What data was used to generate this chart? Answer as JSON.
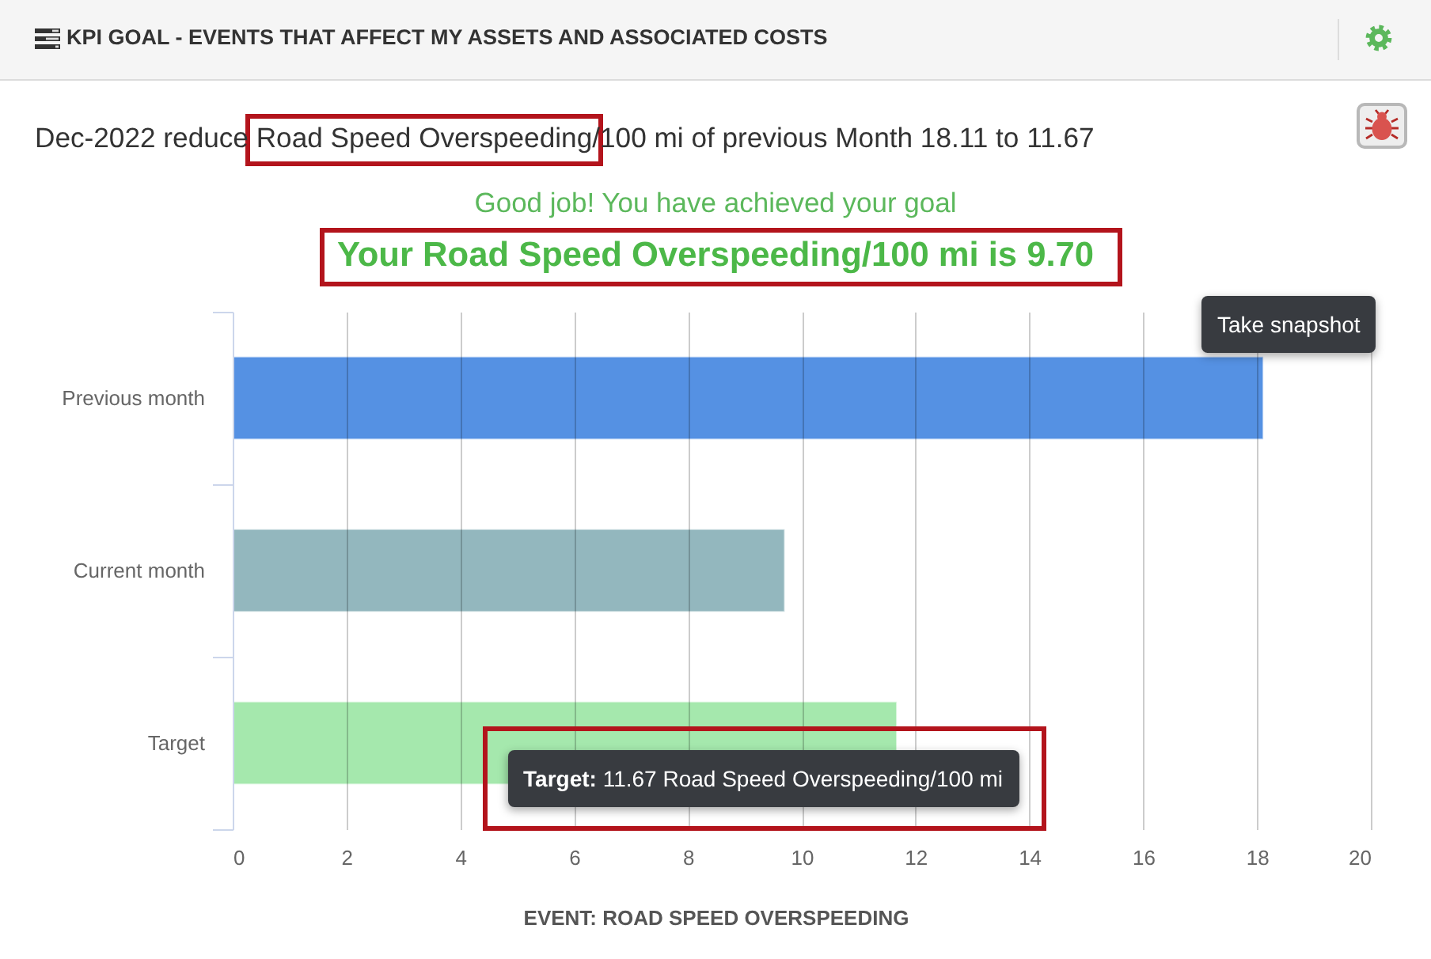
{
  "chart_data": {
    "type": "bar",
    "orientation": "horizontal",
    "title": "KPI GOAL - EVENTS THAT AFFECT MY ASSETS AND ASSOCIATED COSTS",
    "subtitle": "Dec-2022 reduce Road Speed Overspeeding/100 mi of previous Month 18.11 to 11.67",
    "annotations": [
      "Good job! You have achieved your goal",
      "Your Road Speed Overspeeding/100 mi is 9.70",
      "Take snapshot",
      {
        "text": "Target: 11.67 Road Speed Overspeeding/100 mi",
        "x": 11.67,
        "y": "Target"
      }
    ],
    "categories": [
      "Previous month",
      "Current month",
      "Target"
    ],
    "values": [
      18.11,
      9.7,
      11.67
    ],
    "colors": [
      "#5591e3",
      "#93b7be",
      "#a5e8ad"
    ],
    "xlabel": "EVENT: ROAD SPEED OVERSPEEDING",
    "xlim": [
      0,
      20
    ],
    "xticks": [
      0,
      2,
      4,
      6,
      8,
      10,
      12,
      14,
      16,
      18,
      20
    ],
    "grid": "x"
  }
}
